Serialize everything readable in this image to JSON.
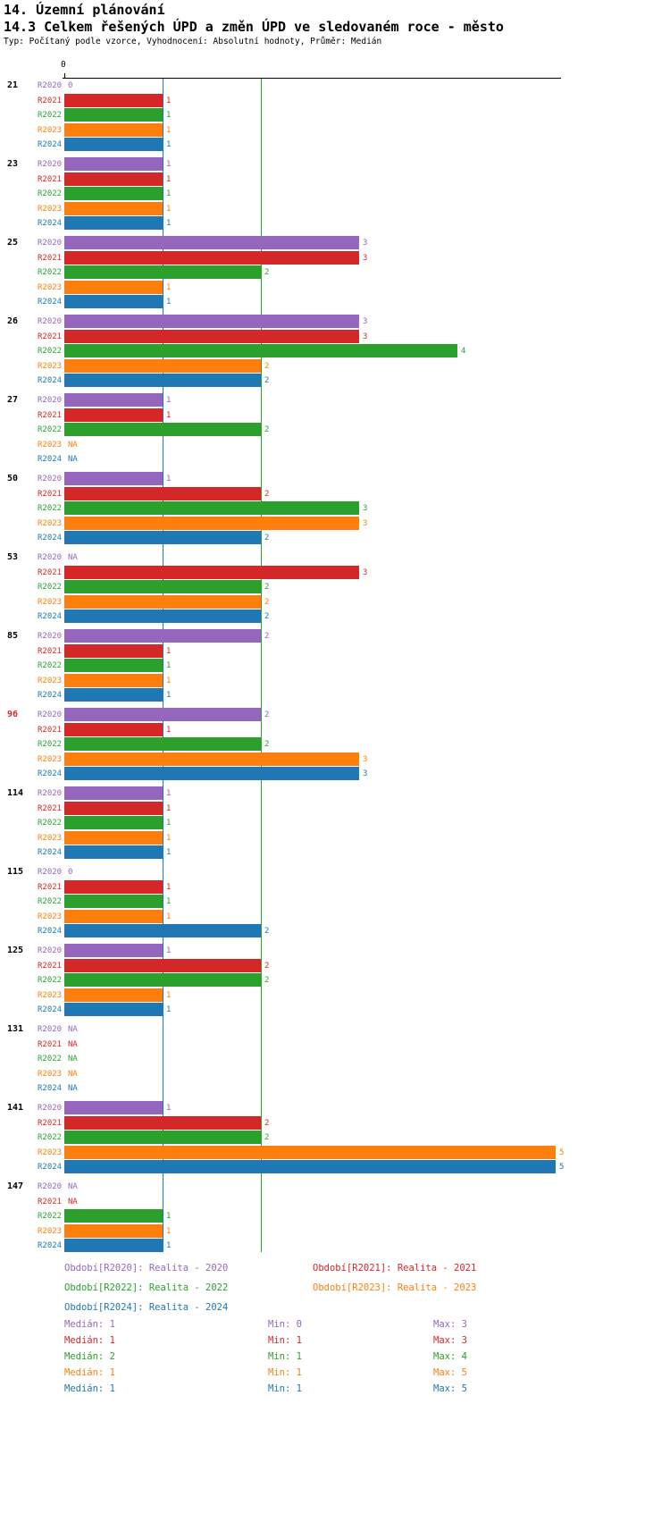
{
  "title": "14. Územní plánování",
  "subtitle": "14.3 Celkem řešených ÚPD a změn ÚPD ve sledovaném roce - město",
  "meta_line": "Typ: Počítaný podle vzorce, Vyhodnocení: Absolutní hodnoty, Průměr: Medián",
  "axis": {
    "tick_label": "0"
  },
  "colors": {
    "R2020": "#9467bd",
    "R2021": "#d62728",
    "R2022": "#2ca02c",
    "R2023": "#ff7f0e",
    "R2024": "#1f77b4",
    "highlight_group": "#d62728",
    "group_label": "#000000",
    "axis": "#000000"
  },
  "chart_data": {
    "type": "bar",
    "orientation": "horizontal",
    "title": "14.3 Celkem řešených ÚPD a změn ÚPD ve sledovaném roce - město",
    "xlim": [
      0,
      5
    ],
    "grid": false,
    "na_text": "NA",
    "series_names": [
      "R2020",
      "R2021",
      "R2022",
      "R2023",
      "R2024"
    ],
    "reference_lines": [
      {
        "value": 1,
        "color": "#1f77b4"
      },
      {
        "value": 2,
        "color": "#2ca02c"
      }
    ],
    "groups": [
      {
        "id": "21",
        "highlight": false,
        "values": [
          0,
          1,
          1,
          1,
          1
        ]
      },
      {
        "id": "23",
        "highlight": false,
        "values": [
          1,
          1,
          1,
          1,
          1
        ]
      },
      {
        "id": "25",
        "highlight": false,
        "values": [
          3,
          3,
          2,
          1,
          1
        ]
      },
      {
        "id": "26",
        "highlight": false,
        "values": [
          3,
          3,
          4,
          2,
          2
        ]
      },
      {
        "id": "27",
        "highlight": false,
        "values": [
          1,
          1,
          2,
          "NA",
          "NA"
        ]
      },
      {
        "id": "50",
        "highlight": false,
        "values": [
          1,
          2,
          3,
          3,
          2
        ]
      },
      {
        "id": "53",
        "highlight": false,
        "values": [
          "NA",
          3,
          2,
          2,
          2
        ]
      },
      {
        "id": "85",
        "highlight": false,
        "values": [
          2,
          1,
          1,
          1,
          1
        ]
      },
      {
        "id": "96",
        "highlight": true,
        "values": [
          2,
          1,
          2,
          3,
          3
        ]
      },
      {
        "id": "114",
        "highlight": false,
        "values": [
          1,
          1,
          1,
          1,
          1
        ]
      },
      {
        "id": "115",
        "highlight": false,
        "values": [
          0,
          1,
          1,
          1,
          2
        ]
      },
      {
        "id": "125",
        "highlight": false,
        "values": [
          1,
          2,
          2,
          1,
          1
        ]
      },
      {
        "id": "131",
        "highlight": false,
        "values": [
          "NA",
          "NA",
          "NA",
          "NA",
          "NA"
        ]
      },
      {
        "id": "141",
        "highlight": false,
        "values": [
          1,
          2,
          2,
          5,
          5
        ]
      },
      {
        "id": "147",
        "highlight": false,
        "values": [
          "NA",
          "NA",
          1,
          1,
          1
        ]
      }
    ]
  },
  "legend": [
    {
      "series": "R2020",
      "label": "Období[R2020]: Realita - 2020"
    },
    {
      "series": "R2021",
      "label": "Období[R2021]: Realita - 2021"
    },
    {
      "series": "R2022",
      "label": "Období[R2022]: Realita - 2022"
    },
    {
      "series": "R2023",
      "label": "Období[R2023]: Realita - 2023"
    },
    {
      "series": "R2024",
      "label": "Období[R2024]: Realita - 2024"
    }
  ],
  "stats": [
    {
      "series": "R2020",
      "median": "Medián: 1",
      "min": "Min: 0",
      "max": "Max: 3"
    },
    {
      "series": "R2021",
      "median": "Medián: 1",
      "min": "Min: 1",
      "max": "Max: 3"
    },
    {
      "series": "R2022",
      "median": "Medián: 2",
      "min": "Min: 1",
      "max": "Max: 4"
    },
    {
      "series": "R2023",
      "median": "Medián: 1",
      "min": "Min: 1",
      "max": "Max: 5"
    },
    {
      "series": "R2024",
      "median": "Medián: 1",
      "min": "Min: 1",
      "max": "Max: 5"
    }
  ]
}
